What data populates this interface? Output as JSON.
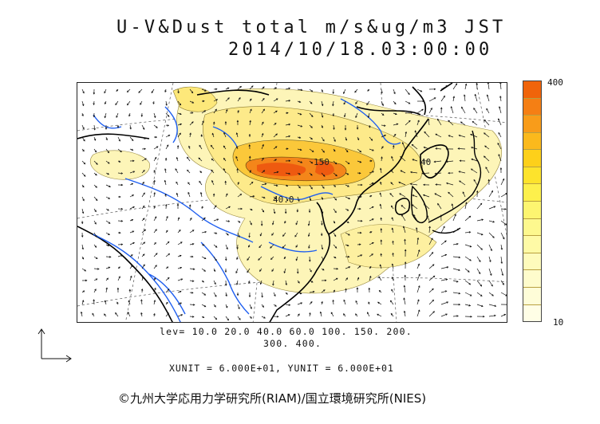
{
  "title": {
    "line1": "U-V&Dust total m/s&ug/m3 JST",
    "line2": "2014/10/18.03:00:00"
  },
  "colorbar": {
    "max_label": "400",
    "min_label": "10",
    "colors": [
      "#f0640a",
      "#f57f14",
      "#f89c1a",
      "#fbb91c",
      "#fdd01a",
      "#fde32c",
      "#fdf04c",
      "#fdf570",
      "#fdf88e",
      "#fefaa6",
      "#fefbbc",
      "#fefccc",
      "#fefdd8",
      "#fffee6"
    ]
  },
  "contour_labels": {
    "a": "40",
    "b": "40.0",
    "c": "150",
    "d": "40"
  },
  "levels": {
    "line1": "lev= 10.0 20.0 40.0 60.0 100. 150. 200.",
    "line2": "300. 400."
  },
  "units": "XUNIT = 6.000E+01, YUNIT = 6.000E+01",
  "credit": "©九州大学応用力学研究所(RIAM)/国立環境研究所(NIES)",
  "colors": {
    "coast": "#000000",
    "rivers": "#1e5ef0",
    "dust_light": "#fdf5b8",
    "dust_mid": "#fde87a",
    "dust_high": "#f6a21c",
    "dust_peak": "#ee5a10"
  }
}
